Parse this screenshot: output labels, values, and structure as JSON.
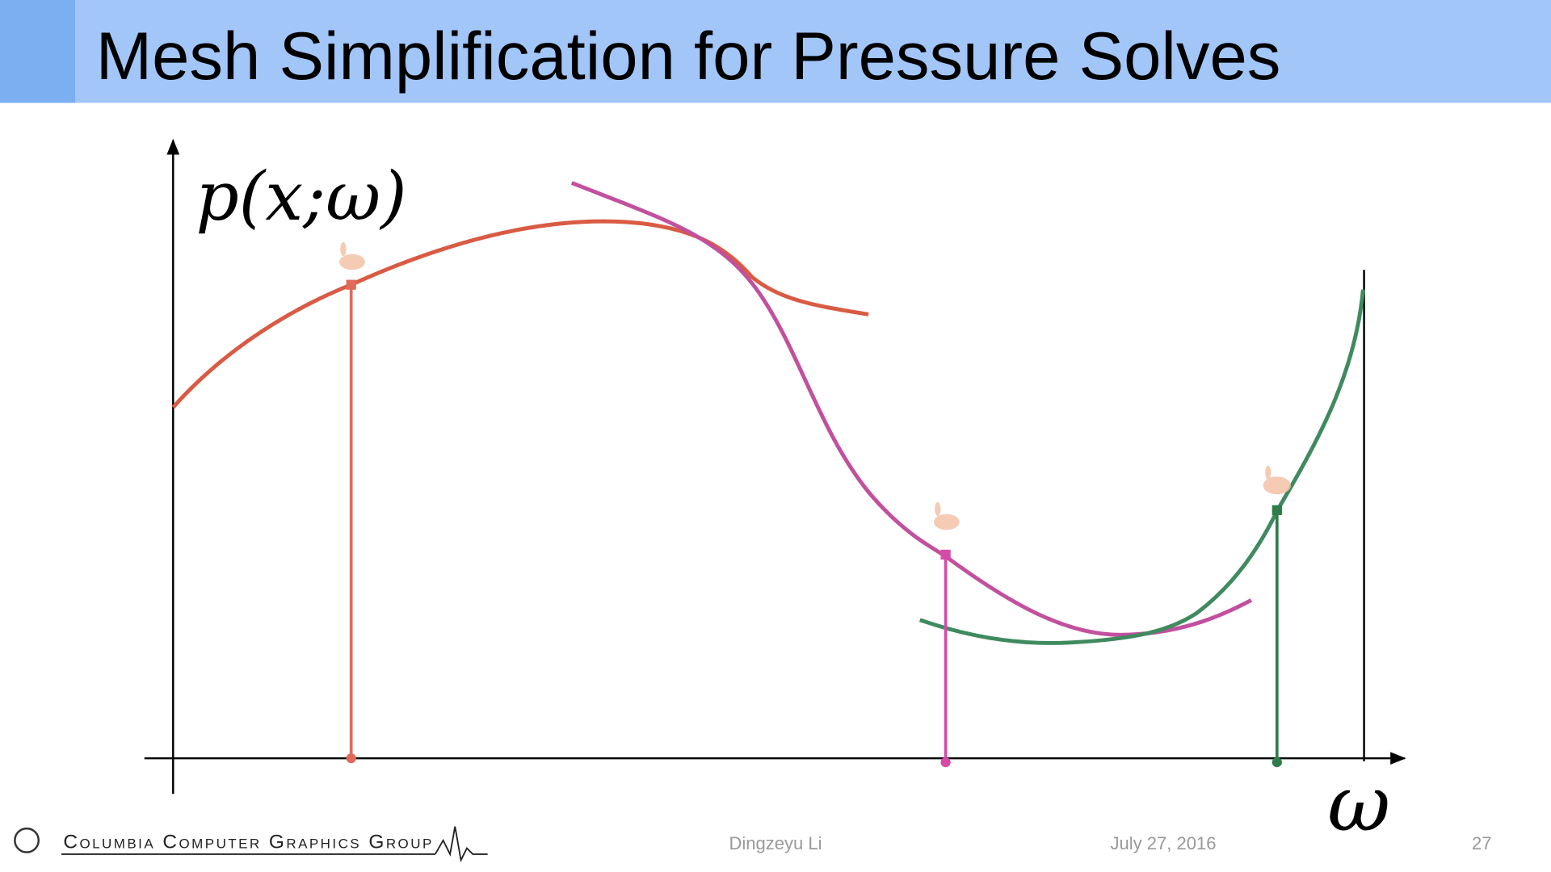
{
  "header": {
    "title": "Mesh Simplification for Pressure Solves"
  },
  "diagram": {
    "y_label": "p(x;ω)",
    "x_label": "ω"
  },
  "footer": {
    "group": "Columbia Computer Graphics Group",
    "author": "Dingzeyu Li",
    "date": "July 27, 2016",
    "page": 27
  }
}
